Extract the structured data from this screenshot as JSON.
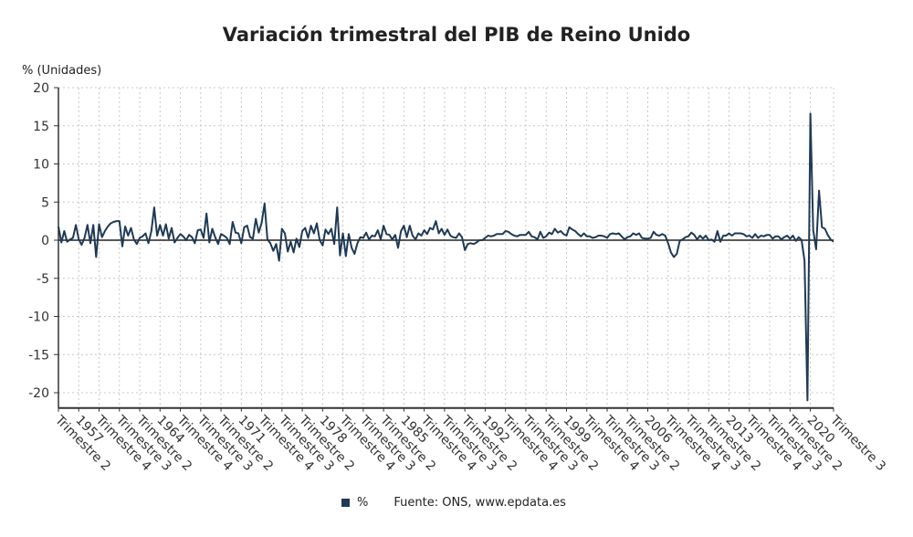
{
  "chart_data": {
    "type": "line",
    "title": "Variación trimestral del PIB de Reino Unido",
    "ylabel": "% (Unidades)",
    "ylim": [
      -22,
      20
    ],
    "yticks": [
      20,
      15,
      10,
      5,
      0,
      -5,
      -10,
      -15,
      -20
    ],
    "grid": true,
    "legend_position": "bottom",
    "series": [
      {
        "name": "%",
        "color": "#1f3a55",
        "period_start": "1955 Trimestre 2",
        "period_end": "2022 Trimestre 3",
        "frequency": "quarterly",
        "values": [
          1.8,
          -0.3,
          1.2,
          -0.2,
          0.1,
          0.3,
          2.0,
          0.1,
          -0.6,
          0.3,
          2.0,
          -0.4,
          2.0,
          -2.2,
          2.1,
          0.4,
          1.2,
          1.8,
          2.2,
          2.4,
          2.5,
          2.5,
          -0.8,
          1.8,
          0.6,
          1.6,
          0.1,
          -0.5,
          0.3,
          0.5,
          0.9,
          -0.4,
          1.2,
          4.3,
          0.6,
          2.0,
          0.6,
          2.1,
          0.2,
          1.6,
          -0.3,
          0.3,
          0.8,
          0.5,
          0.0,
          0.7,
          0.4,
          -0.4,
          1.3,
          1.4,
          0.3,
          3.5,
          -0.3,
          1.5,
          0.4,
          -0.5,
          0.8,
          0.6,
          0.3,
          -0.5,
          2.4,
          1.0,
          0.9,
          -0.4,
          1.7,
          1.9,
          0.4,
          0.2,
          2.8,
          1.0,
          2.3,
          4.8,
          0.1,
          -0.4,
          -1.4,
          -0.5,
          -2.7,
          1.5,
          0.9,
          -1.5,
          -0.2,
          -1.6,
          0.2,
          -0.9,
          1.2,
          1.6,
          0.3,
          1.9,
          0.9,
          2.2,
          0.0,
          -0.7,
          1.4,
          0.8,
          1.5,
          -0.5,
          4.3,
          -2.0,
          0.9,
          -2.1,
          0.8,
          -1.0,
          -1.8,
          -0.4,
          0.4,
          0.3,
          1.0,
          0.1,
          0.6,
          0.5,
          1.3,
          0.1,
          1.9,
          0.8,
          0.7,
          0.1,
          0.7,
          -1.0,
          1.2,
          1.9,
          0.4,
          1.9,
          0.6,
          0.1,
          0.9,
          0.6,
          1.3,
          0.8,
          1.6,
          1.4,
          2.5,
          0.9,
          1.5,
          0.7,
          1.4,
          0.6,
          0.4,
          0.3,
          0.9,
          0.4,
          -1.3,
          -0.5,
          -0.4,
          -0.5,
          -0.3,
          0.0,
          0.0,
          0.3,
          0.6,
          0.5,
          0.6,
          0.8,
          0.8,
          0.8,
          1.2,
          1.1,
          0.8,
          0.6,
          0.5,
          0.7,
          0.7,
          0.7,
          1.1,
          0.5,
          0.4,
          0.1,
          1.1,
          0.3,
          0.5,
          1.0,
          0.8,
          1.5,
          1.0,
          1.2,
          0.8,
          0.6,
          1.7,
          1.4,
          1.2,
          0.8,
          0.5,
          0.9,
          0.5,
          0.5,
          0.3,
          0.4,
          0.6,
          0.6,
          0.5,
          0.3,
          0.8,
          0.9,
          0.8,
          0.9,
          0.5,
          0.1,
          0.4,
          0.5,
          0.9,
          0.7,
          0.9,
          0.3,
          0.2,
          0.2,
          0.3,
          1.1,
          0.7,
          0.6,
          0.8,
          0.6,
          -0.4,
          -1.6,
          -2.2,
          -1.8,
          -0.1,
          0.1,
          0.4,
          0.5,
          1.0,
          0.7,
          0.1,
          0.6,
          0.2,
          0.6,
          0.0,
          0.1,
          -0.2,
          1.2,
          -0.2,
          0.6,
          0.6,
          0.9,
          0.6,
          0.9,
          0.9,
          0.9,
          0.8,
          0.5,
          0.6,
          0.3,
          0.8,
          0.3,
          0.6,
          0.5,
          0.7,
          0.7,
          0.2,
          0.5,
          0.5,
          0.1,
          0.4,
          0.6,
          0.2,
          0.6,
          -0.1,
          0.4,
          0.0,
          -2.7,
          -21.0,
          16.6,
          1.3,
          -1.2,
          6.5,
          1.7,
          1.5,
          0.7,
          0.1,
          -0.2
        ]
      }
    ],
    "x_tick_step_quarters": 7,
    "x_tick_labels": [
      "Trimestre 2",
      "1957",
      "Trimestre 4",
      "Trimestre 3",
      "Trimestre 2",
      "1964",
      "Trimestre 4",
      "Trimestre 3",
      "Trimestre 2",
      "1971",
      "Trimestre 4",
      "Trimestre 3",
      "Trimestre 2",
      "1978",
      "Trimestre 4",
      "Trimestre 3",
      "Trimestre 2",
      "1985",
      "Trimestre 4",
      "Trimestre 3",
      "Trimestre 2",
      "1992",
      "Trimestre 4",
      "Trimestre 3",
      "Trimestre 2",
      "1999",
      "Trimestre 4",
      "Trimestre 3",
      "Trimestre 2",
      "2006",
      "Trimestre 4",
      "Trimestre 3",
      "Trimestre 2",
      "2013",
      "Trimestre 4",
      "Trimestre 3",
      "Trimestre 2",
      "2020"
    ],
    "x_last_label": "Trimestre 3"
  },
  "legend": {
    "label": "%"
  },
  "source": "Fuente: ONS, www.epdata.es"
}
